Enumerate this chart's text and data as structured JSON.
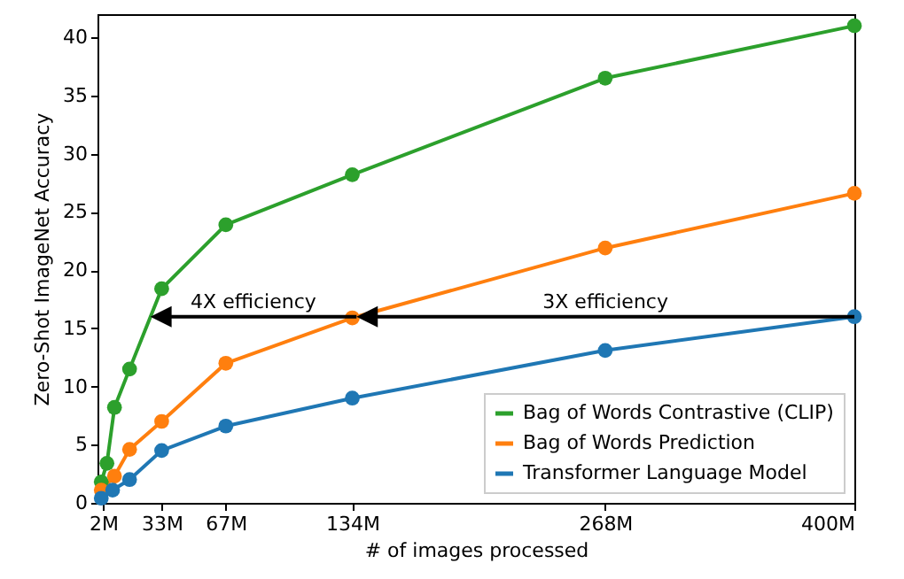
{
  "chart_data": {
    "type": "line",
    "xlabel": "# of images processed",
    "ylabel": "Zero-Shot ImageNet Accuracy",
    "xlim": [
      -1,
      400
    ],
    "xticks": [
      {
        "value": 2,
        "label": "2M"
      },
      {
        "value": 33,
        "label": "33M"
      },
      {
        "value": 67,
        "label": "67M"
      },
      {
        "value": 134,
        "label": "134M"
      },
      {
        "value": 268,
        "label": "268M"
      },
      {
        "value": 400,
        "label": "400M"
      }
    ],
    "ylim": [
      0,
      42
    ],
    "yticks": [
      0,
      5,
      10,
      15,
      20,
      25,
      30,
      35,
      40
    ],
    "series": [
      {
        "name": "Bag of Words Contrastive (CLIP)",
        "color": "#2ca02c",
        "x": [
          1,
          4,
          8,
          16,
          33,
          67,
          134,
          268,
          400
        ],
        "values": [
          1.8,
          3.4,
          8.2,
          11.5,
          18.4,
          23.9,
          28.2,
          36.5,
          41.0
        ]
      },
      {
        "name": "Bag of Words Prediction",
        "color": "#ff7f0e",
        "x": [
          1,
          8,
          16,
          33,
          67,
          134,
          268,
          400
        ],
        "values": [
          1.1,
          2.3,
          4.6,
          7.0,
          12.0,
          15.9,
          21.9,
          26.6
        ]
      },
      {
        "name": "Transformer Language Model",
        "color": "#1f77b4",
        "x": [
          1,
          7,
          16,
          33,
          67,
          134,
          268,
          400
        ],
        "values": [
          0.4,
          1.1,
          2.0,
          4.5,
          6.6,
          9.0,
          13.1,
          16.0
        ]
      }
    ],
    "annotations": [
      {
        "text": "4X efficiency",
        "x": 27,
        "y": 16
      },
      "3X efficiency"
    ],
    "marker": "circle",
    "line_style": "solid",
    "grid": false,
    "legend": "bottom right"
  }
}
